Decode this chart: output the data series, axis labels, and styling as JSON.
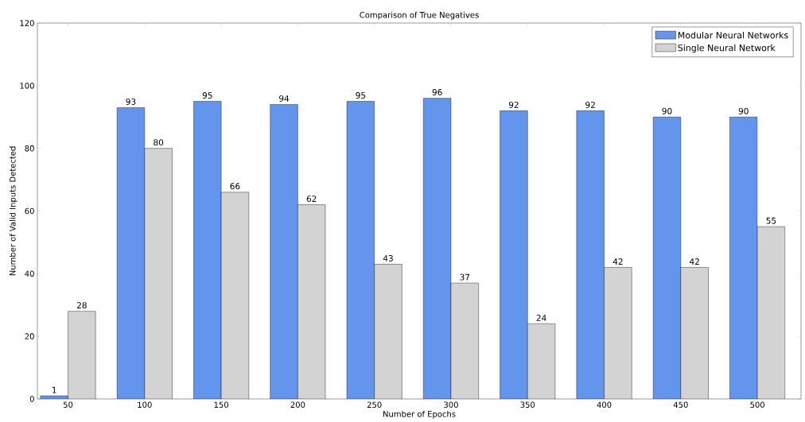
{
  "chart_data": {
    "type": "bar",
    "title": "Comparison of True Negatives",
    "xlabel": "Number of Epochs",
    "ylabel": "Number of Valid Inputs Detected",
    "categories": [
      "50",
      "100",
      "150",
      "200",
      "250",
      "300",
      "350",
      "400",
      "450",
      "500"
    ],
    "series": [
      {
        "name": "Modular Neural Networks",
        "color": "#6495ed",
        "values": [
          1,
          93,
          95,
          94,
          95,
          96,
          92,
          92,
          90,
          90
        ]
      },
      {
        "name": "Single Neural Network",
        "color": "#d3d3d3",
        "values": [
          28,
          80,
          66,
          62,
          43,
          37,
          24,
          42,
          42,
          55
        ]
      }
    ],
    "ylim": [
      0,
      120
    ],
    "yticks": [
      0,
      20,
      40,
      60,
      80,
      100,
      120
    ],
    "data_labels": true,
    "legend": "top right",
    "grid": false
  }
}
